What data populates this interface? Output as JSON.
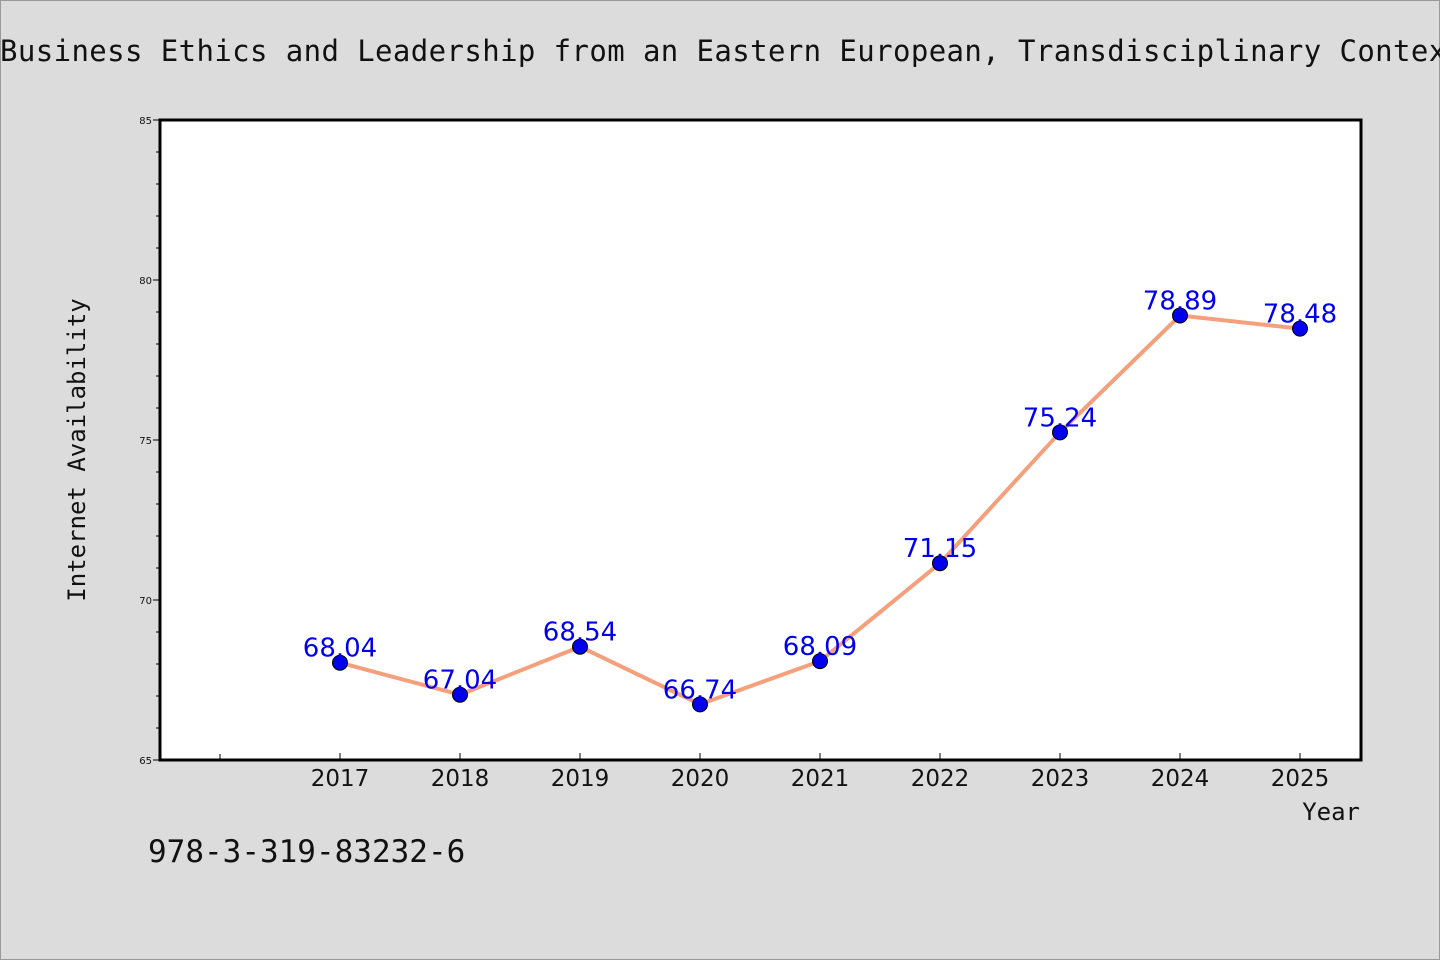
{
  "header": {
    "title": "Business Ethics and Leadership from an Eastern European, Transdisciplinary Context"
  },
  "footer": {
    "isbn": "978-3-319-83232-6"
  },
  "colors": {
    "line": "#f4a07c",
    "marker": "#0000ee",
    "label": "#0000ee",
    "background": "#dcdcdc",
    "plot_background": "#ffffff"
  },
  "chart_data": {
    "type": "line",
    "title": "Business Ethics and Leadership from an Eastern European, Transdisciplinary Context",
    "xlabel": "Year",
    "ylabel": "Internet Availability",
    "categories": [
      "2017",
      "2018",
      "2019",
      "2020",
      "2021",
      "2022",
      "2023",
      "2024",
      "2025"
    ],
    "series": [
      {
        "values": [
          68.04,
          67.04,
          68.54,
          66.74,
          68.09,
          71.15,
          75.24,
          78.89,
          78.48
        ],
        "labels": [
          "68.04",
          "67.04",
          "68.54",
          "66.74",
          "68.09",
          "71.15",
          "75.24",
          "78.89",
          "78.48"
        ]
      }
    ],
    "ylim": [
      65,
      85
    ],
    "yticks": [
      65,
      70,
      75,
      80,
      85
    ],
    "grid": false,
    "legend": "none"
  }
}
